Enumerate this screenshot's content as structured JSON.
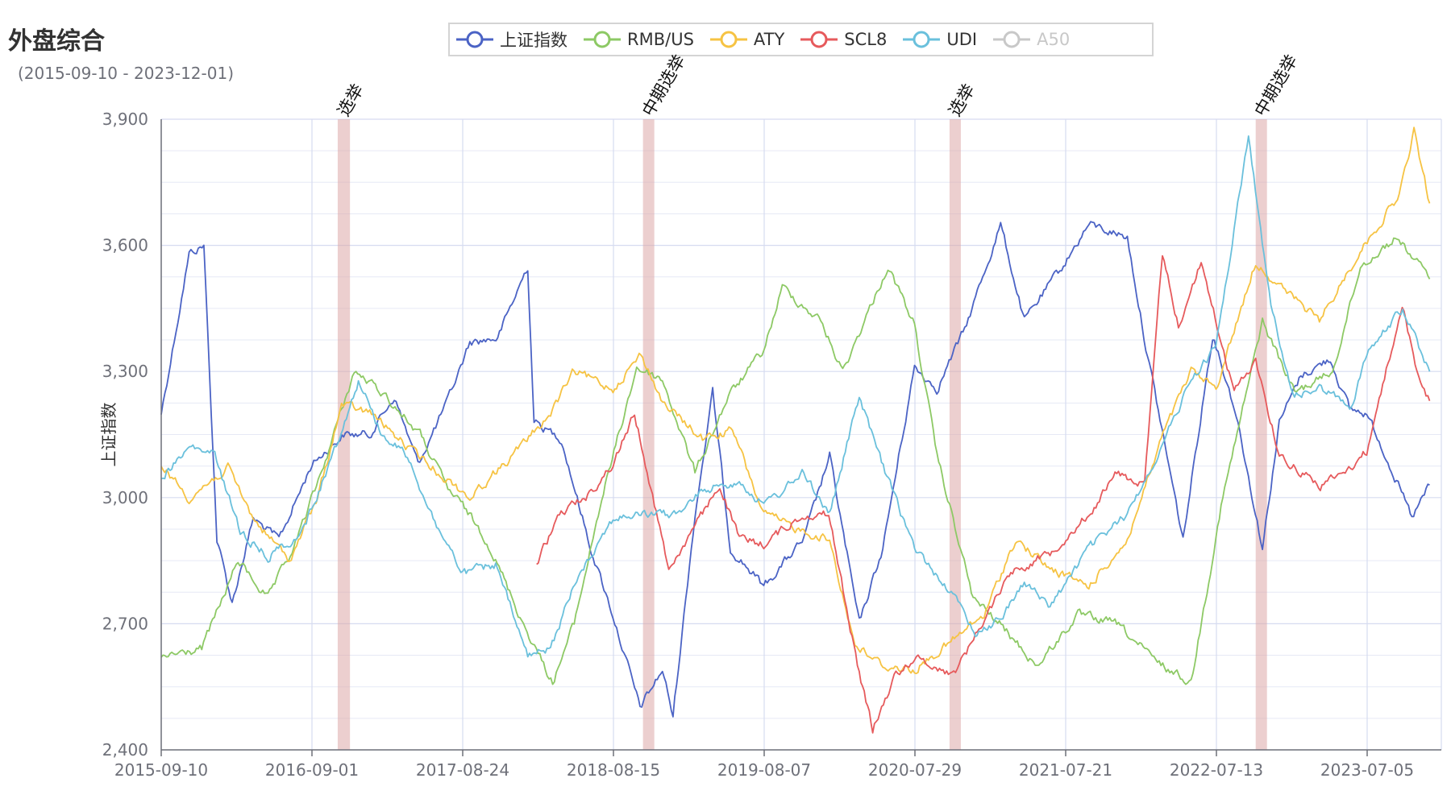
{
  "title": "外盘综合",
  "subtitle": "(2015-09-10 - 2023-12-01)",
  "legend": [
    {
      "name": "上证指数",
      "color": "#4b63c5",
      "active": true
    },
    {
      "name": "RMB/US",
      "color": "#8dc965",
      "active": true
    },
    {
      "name": "ATY",
      "color": "#f6c343",
      "active": true
    },
    {
      "name": "SCL8",
      "color": "#e65a5c",
      "active": true
    },
    {
      "name": "UDI",
      "color": "#6ac0dc",
      "active": true
    },
    {
      "name": "A50",
      "color": "#c8c8c8",
      "active": false
    }
  ],
  "chart_data": {
    "type": "line",
    "title": "外盘综合",
    "ylabel": "上证指数",
    "ylim": [
      2400,
      3900
    ],
    "yticks": [
      "2,400",
      "2,700",
      "3,000",
      "3,300",
      "3,600",
      "3,900"
    ],
    "x_tick_labels": [
      "2015-09-10",
      "2016-09-01",
      "2017-08-24",
      "2018-08-15",
      "2019-08-07",
      "2020-07-29",
      "2021-07-21",
      "2022-07-13",
      "2023-07-05"
    ],
    "x_range": [
      "2015-09-10",
      "2023-12-01"
    ],
    "grid": true,
    "legend_position": "top",
    "events": [
      {
        "label": "选举",
        "start": "2016-11-01",
        "end": "2016-11-30"
      },
      {
        "label": "中期选举",
        "start": "2018-10-25",
        "end": "2018-11-20"
      },
      {
        "label": "选举",
        "start": "2020-10-20",
        "end": "2020-11-15"
      },
      {
        "label": "中期选举",
        "start": "2022-10-15",
        "end": "2022-11-08"
      }
    ],
    "series": [
      {
        "name": "上证指数",
        "axis": "left",
        "points": [
          [
            "2015-09-10",
            3200
          ],
          [
            "2015-10-15",
            3400
          ],
          [
            "2015-11-15",
            3580
          ],
          [
            "2015-12-20",
            3600
          ],
          [
            "2016-01-20",
            2900
          ],
          [
            "2016-02-25",
            2750
          ],
          [
            "2016-04-15",
            2950
          ],
          [
            "2016-06-15",
            2900
          ],
          [
            "2016-09-01",
            3080
          ],
          [
            "2016-11-15",
            3150
          ],
          [
            "2017-01-15",
            3150
          ],
          [
            "2017-03-15",
            3240
          ],
          [
            "2017-05-10",
            3080
          ],
          [
            "2017-07-20",
            3230
          ],
          [
            "2017-09-10",
            3370
          ],
          [
            "2017-11-15",
            3380
          ],
          [
            "2018-01-25",
            3550
          ],
          [
            "2018-02-09",
            3180
          ],
          [
            "2018-04-15",
            3140
          ],
          [
            "2018-06-20",
            2890
          ],
          [
            "2018-08-15",
            2720
          ],
          [
            "2018-10-18",
            2500
          ],
          [
            "2018-12-10",
            2590
          ],
          [
            "2019-01-04",
            2480
          ],
          [
            "2019-02-25",
            2960
          ],
          [
            "2019-04-08",
            3250
          ],
          [
            "2019-05-20",
            2880
          ],
          [
            "2019-08-07",
            2790
          ],
          [
            "2019-11-10",
            2900
          ],
          [
            "2020-01-10",
            3100
          ],
          [
            "2020-03-20",
            2700
          ],
          [
            "2020-05-15",
            2880
          ],
          [
            "2020-07-29",
            3310
          ],
          [
            "2020-09-20",
            3260
          ],
          [
            "2020-11-25",
            3400
          ],
          [
            "2021-02-18",
            3650
          ],
          [
            "2021-04-15",
            3420
          ],
          [
            "2021-07-21",
            3560
          ],
          [
            "2021-09-15",
            3650
          ],
          [
            "2021-12-15",
            3620
          ],
          [
            "2022-01-28",
            3360
          ],
          [
            "2022-04-26",
            2900
          ],
          [
            "2022-07-05",
            3390
          ],
          [
            "2022-08-30",
            3200
          ],
          [
            "2022-10-31",
            2880
          ],
          [
            "2022-12-10",
            3180
          ],
          [
            "2023-01-30",
            3290
          ],
          [
            "2023-04-10",
            3330
          ],
          [
            "2023-05-25",
            3210
          ],
          [
            "2023-07-05",
            3200
          ],
          [
            "2023-08-20",
            3100
          ],
          [
            "2023-10-20",
            2950
          ],
          [
            "2023-12-01",
            3030
          ]
        ]
      },
      {
        "name": "RMB/US",
        "axis": "right",
        "points": [
          [
            "2015-09-10",
            2620
          ],
          [
            "2015-12-15",
            2640
          ],
          [
            "2016-03-10",
            2850
          ],
          [
            "2016-05-20",
            2760
          ],
          [
            "2016-07-20",
            2880
          ],
          [
            "2016-09-20",
            3050
          ],
          [
            "2016-12-10",
            3300
          ],
          [
            "2017-02-15",
            3250
          ],
          [
            "2017-05-15",
            3150
          ],
          [
            "2017-07-20",
            3020
          ],
          [
            "2017-08-24",
            2980
          ],
          [
            "2017-10-20",
            2900
          ],
          [
            "2018-01-15",
            2700
          ],
          [
            "2018-03-25",
            2560
          ],
          [
            "2018-05-15",
            2700
          ],
          [
            "2018-07-15",
            2980
          ],
          [
            "2018-10-10",
            3310
          ],
          [
            "2018-12-10",
            3280
          ],
          [
            "2019-02-25",
            3060
          ],
          [
            "2019-05-15",
            3240
          ],
          [
            "2019-08-07",
            3350
          ],
          [
            "2019-09-20",
            3500
          ],
          [
            "2019-12-20",
            3420
          ],
          [
            "2020-02-10",
            3300
          ],
          [
            "2020-05-27",
            3550
          ],
          [
            "2020-07-29",
            3410
          ],
          [
            "2020-09-20",
            3100
          ],
          [
            "2020-12-15",
            2760
          ],
          [
            "2021-02-15",
            2700
          ],
          [
            "2021-05-15",
            2600
          ],
          [
            "2021-08-20",
            2720
          ],
          [
            "2021-11-20",
            2700
          ],
          [
            "2022-02-20",
            2610
          ],
          [
            "2022-05-15",
            2560
          ],
          [
            "2022-07-25",
            2980
          ],
          [
            "2022-10-31",
            3420
          ],
          [
            "2023-01-15",
            3250
          ],
          [
            "2023-04-15",
            3300
          ],
          [
            "2023-06-20",
            3550
          ],
          [
            "2023-09-15",
            3620
          ],
          [
            "2023-12-01",
            3520
          ]
        ]
      },
      {
        "name": "ATY",
        "axis": "right",
        "points": [
          [
            "2015-09-10",
            3080
          ],
          [
            "2015-11-15",
            3000
          ],
          [
            "2016-02-15",
            3070
          ],
          [
            "2016-04-15",
            2950
          ],
          [
            "2016-07-10",
            2850
          ],
          [
            "2016-09-15",
            3000
          ],
          [
            "2016-11-10",
            3220
          ],
          [
            "2017-01-20",
            3200
          ],
          [
            "2017-04-15",
            3120
          ],
          [
            "2017-07-10",
            3050
          ],
          [
            "2017-09-10",
            3000
          ],
          [
            "2017-12-20",
            3100
          ],
          [
            "2018-03-20",
            3200
          ],
          [
            "2018-05-15",
            3300
          ],
          [
            "2018-08-15",
            3260
          ],
          [
            "2018-10-20",
            3340
          ],
          [
            "2018-12-15",
            3220
          ],
          [
            "2019-03-15",
            3140
          ],
          [
            "2019-05-25",
            3160
          ],
          [
            "2019-08-07",
            2960
          ],
          [
            "2019-11-10",
            2920
          ],
          [
            "2020-01-10",
            2900
          ],
          [
            "2020-03-10",
            2650
          ],
          [
            "2020-05-15",
            2600
          ],
          [
            "2020-07-29",
            2590
          ],
          [
            "2020-10-15",
            2650
          ],
          [
            "2021-01-10",
            2720
          ],
          [
            "2021-03-25",
            2900
          ],
          [
            "2021-06-15",
            2830
          ],
          [
            "2021-09-15",
            2790
          ],
          [
            "2021-12-15",
            2900
          ],
          [
            "2022-03-10",
            3150
          ],
          [
            "2022-05-15",
            3300
          ],
          [
            "2022-07-13",
            3260
          ],
          [
            "2022-10-15",
            3560
          ],
          [
            "2022-12-15",
            3500
          ],
          [
            "2023-03-15",
            3420
          ],
          [
            "2023-06-15",
            3580
          ],
          [
            "2023-09-20",
            3720
          ],
          [
            "2023-10-25",
            3870
          ],
          [
            "2023-12-01",
            3700
          ]
        ]
      },
      {
        "name": "SCL8",
        "axis": "right",
        "points": [
          [
            "2018-02-15",
            2840
          ],
          [
            "2018-04-10",
            2960
          ],
          [
            "2018-06-20",
            3010
          ],
          [
            "2018-08-15",
            3080
          ],
          [
            "2018-10-05",
            3200
          ],
          [
            "2018-12-25",
            2830
          ],
          [
            "2019-03-15",
            2960
          ],
          [
            "2019-04-25",
            3030
          ],
          [
            "2019-06-10",
            2900
          ],
          [
            "2019-08-07",
            2890
          ],
          [
            "2019-11-10",
            2960
          ],
          [
            "2020-01-08",
            2960
          ],
          [
            "2020-03-20",
            2580
          ],
          [
            "2020-04-21",
            2450
          ],
          [
            "2020-06-15",
            2580
          ],
          [
            "2020-07-29",
            2620
          ],
          [
            "2020-10-30",
            2580
          ],
          [
            "2021-01-15",
            2720
          ],
          [
            "2021-03-10",
            2820
          ],
          [
            "2021-06-15",
            2870
          ],
          [
            "2021-09-15",
            2960
          ],
          [
            "2021-11-20",
            3060
          ],
          [
            "2022-01-25",
            3030
          ],
          [
            "2022-03-08",
            3580
          ],
          [
            "2022-04-15",
            3410
          ],
          [
            "2022-06-08",
            3560
          ],
          [
            "2022-08-25",
            3250
          ],
          [
            "2022-10-15",
            3330
          ],
          [
            "2022-12-10",
            3100
          ],
          [
            "2023-03-17",
            3030
          ],
          [
            "2023-05-15",
            3060
          ],
          [
            "2023-07-05",
            3110
          ],
          [
            "2023-09-27",
            3460
          ],
          [
            "2023-11-01",
            3300
          ],
          [
            "2023-12-01",
            3230
          ]
        ]
      },
      {
        "name": "UDI",
        "axis": "right",
        "points": [
          [
            "2015-09-10",
            3050
          ],
          [
            "2015-11-20",
            3120
          ],
          [
            "2016-01-15",
            3100
          ],
          [
            "2016-03-15",
            2920
          ],
          [
            "2016-05-20",
            2860
          ],
          [
            "2016-08-10",
            2920
          ],
          [
            "2016-10-20",
            3100
          ],
          [
            "2016-12-20",
            3280
          ],
          [
            "2017-02-15",
            3150
          ],
          [
            "2017-04-15",
            3100
          ],
          [
            "2017-06-15",
            2950
          ],
          [
            "2017-08-24",
            2820
          ],
          [
            "2017-11-10",
            2840
          ],
          [
            "2018-01-25",
            2620
          ],
          [
            "2018-03-20",
            2640
          ],
          [
            "2018-05-25",
            2820
          ],
          [
            "2018-08-15",
            2950
          ],
          [
            "2018-10-20",
            2960
          ],
          [
            "2019-01-15",
            2960
          ],
          [
            "2019-03-20",
            3020
          ],
          [
            "2019-06-10",
            3040
          ],
          [
            "2019-08-07",
            2980
          ],
          [
            "2019-11-10",
            3060
          ],
          [
            "2020-01-10",
            2960
          ],
          [
            "2020-03-20",
            3240
          ],
          [
            "2020-05-20",
            3060
          ],
          [
            "2020-07-29",
            2880
          ],
          [
            "2020-10-20",
            2780
          ],
          [
            "2020-12-20",
            2680
          ],
          [
            "2021-02-15",
            2710
          ],
          [
            "2021-04-15",
            2800
          ],
          [
            "2021-06-15",
            2740
          ],
          [
            "2021-09-15",
            2880
          ],
          [
            "2021-12-15",
            2960
          ],
          [
            "2022-03-15",
            3140
          ],
          [
            "2022-05-15",
            3280
          ],
          [
            "2022-07-13",
            3360
          ],
          [
            "2022-09-28",
            3860
          ],
          [
            "2022-11-20",
            3450
          ],
          [
            "2023-01-15",
            3240
          ],
          [
            "2023-03-15",
            3260
          ],
          [
            "2023-05-30",
            3220
          ],
          [
            "2023-07-05",
            3340
          ],
          [
            "2023-09-28",
            3450
          ],
          [
            "2023-12-01",
            3300
          ]
        ]
      }
    ]
  }
}
